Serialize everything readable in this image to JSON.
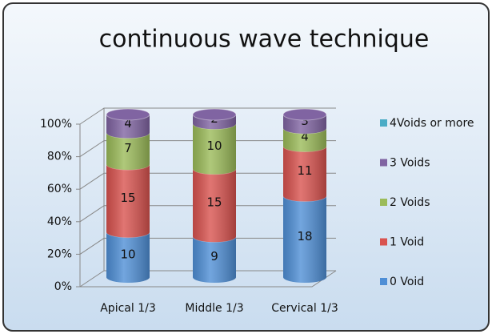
{
  "chart_data": {
    "type": "bar",
    "stack": "percent",
    "title": "continuous wave technique",
    "categories": [
      "Apical 1/3",
      "Middle 1/3",
      "Cervical 1/3"
    ],
    "series": [
      {
        "name": "0 Void",
        "color": "#4f8fd6",
        "values": [
          10,
          9,
          18
        ]
      },
      {
        "name": "1 Void",
        "color": "#d9534f",
        "values": [
          15,
          15,
          11
        ]
      },
      {
        "name": "2 Voids",
        "color": "#9bbb59",
        "values": [
          7,
          10,
          4
        ]
      },
      {
        "name": "3 Voids",
        "color": "#8064a2",
        "values": [
          4,
          2,
          3
        ]
      },
      {
        "name": "4Voids or more",
        "color": "#4bacc6",
        "values": [
          0,
          0,
          0
        ]
      }
    ],
    "ylim": [
      0,
      100
    ],
    "yticks": [
      {
        "value": 0,
        "label": "0%"
      },
      {
        "value": 20,
        "label": "20%"
      },
      {
        "value": 40,
        "label": "40%"
      },
      {
        "value": 60,
        "label": "60%"
      },
      {
        "value": 80,
        "label": "80%"
      },
      {
        "value": 100,
        "label": "100%"
      }
    ],
    "grid": true,
    "legend": "right"
  }
}
